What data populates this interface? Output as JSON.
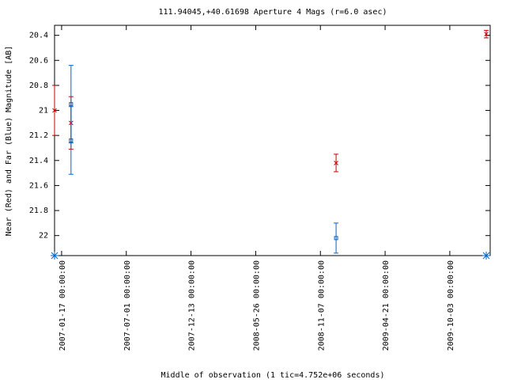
{
  "chart_data": {
    "type": "errorbar",
    "title": "111.94045,+40.61698   Aperture 4 Mags (r=6.0 asec)",
    "x_label": "Middle of observation (1 tic=4.752e+06 seconds)",
    "y_label": "Near (Red) and Far (Blue) Magnitude [AB]",
    "xlim": [
      "2006-12-30",
      "2010-01-14"
    ],
    "xticks": [
      "2007-01-17 00:00:00",
      "2007-07-01 00:00:00",
      "2007-12-13 00:00:00",
      "2008-05-26 00:00:00",
      "2008-11-07 00:00:00",
      "2009-04-21 00:00:00",
      "2009-10-03 00:00:00"
    ],
    "ylim": [
      20.32,
      22.16
    ],
    "y_inverted": true,
    "yticks": [
      20.4,
      20.6,
      20.8,
      21,
      21.2,
      21.4,
      21.6,
      21.8,
      22
    ],
    "series": [
      {
        "color": "#cc0000",
        "marker": "x",
        "x": [
          "2006-12-30",
          "2007-02-10",
          "2008-12-17",
          "2010-01-04"
        ],
        "values": [
          21.0,
          21.1,
          21.42,
          20.39
        ],
        "errors": [
          0.2,
          0.21,
          0.07,
          0.03
        ]
      },
      {
        "color": "#0066cc",
        "marker": "square",
        "x": [
          "2007-02-10",
          "2007-02-10",
          "2008-12-17"
        ],
        "values": [
          20.95,
          21.24,
          22.02
        ],
        "errors": [
          0.31,
          0.27,
          0.12
        ]
      },
      {
        "color": "#0066cc",
        "marker": "star",
        "x": [
          "2006-12-30",
          "2010-01-04"
        ],
        "values": [
          22.16,
          22.16
        ]
      }
    ]
  }
}
